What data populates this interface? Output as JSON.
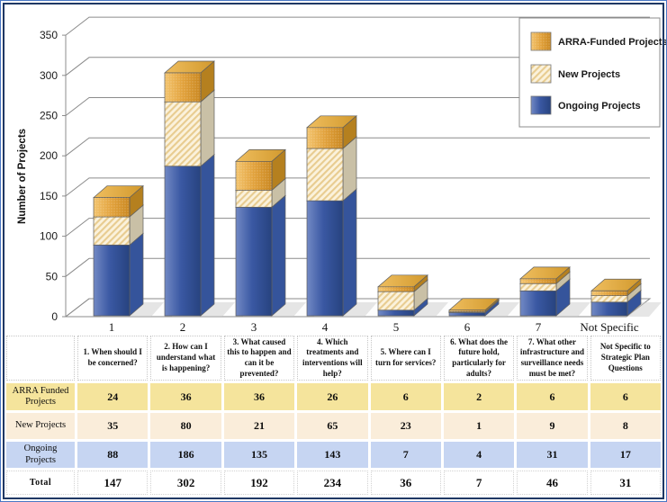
{
  "frame": {
    "outer_border_color": "#4A77C4",
    "inner_border_color": "#1F3864"
  },
  "chart_data": {
    "type": "bar",
    "stacked": true,
    "effect": "3d-column",
    "title": "",
    "xlabel": "",
    "ylabel": "Number of Projects",
    "ylim": [
      0,
      350
    ],
    "yticks": [
      0,
      50,
      100,
      150,
      200,
      250,
      300,
      350
    ],
    "grid": true,
    "legend_position": "top-right",
    "categories": [
      "1",
      "2",
      "3",
      "4",
      "5",
      "6",
      "7",
      "Not Specific"
    ],
    "series": [
      {
        "name": "ARRA-Funded Projects",
        "values": [
          24,
          36,
          36,
          26,
          6,
          2,
          6,
          6
        ],
        "color": "#E2A23C",
        "texture": "speckle"
      },
      {
        "name": "New Projects",
        "values": [
          35,
          80,
          21,
          65,
          23,
          1,
          9,
          8
        ],
        "color": "#FBF2DC",
        "texture": "diagonal-hatch"
      },
      {
        "name": "Ongoing Projects",
        "values": [
          88,
          186,
          135,
          143,
          7,
          4,
          31,
          17
        ],
        "color": "#3E5CA8",
        "texture": "solid"
      }
    ],
    "totals": [
      147,
      302,
      192,
      234,
      36,
      7,
      46,
      31
    ]
  },
  "table": {
    "corner_label": "",
    "question_headers": [
      "1. When should I be concerned?",
      "2. How can I understand what is happening?",
      "3. What caused this to happen and can it be prevented?",
      "4. Which treatments and interventions will help?",
      "5. Where can I turn for services?",
      "6. What does the future hold, particularly for adults?",
      "7. What other infrastructure and surveillance needs must be met?",
      "Not Specific to Strategic Plan Questions"
    ],
    "rows": [
      {
        "label": "ARRA Funded Projects",
        "values": [
          24,
          36,
          36,
          26,
          6,
          2,
          6,
          6
        ],
        "bg": "#F5E49C"
      },
      {
        "label": "New Projects",
        "values": [
          35,
          80,
          21,
          65,
          23,
          1,
          9,
          8
        ],
        "bg": "#FAEDDA"
      },
      {
        "label": "Ongoing Projects",
        "values": [
          88,
          186,
          135,
          143,
          7,
          4,
          31,
          17
        ],
        "bg": "#C6D5F2"
      },
      {
        "label": "Total",
        "values": [
          147,
          302,
          192,
          234,
          36,
          7,
          46,
          31
        ],
        "bg": "#FFFFFF",
        "bold": true
      }
    ]
  }
}
